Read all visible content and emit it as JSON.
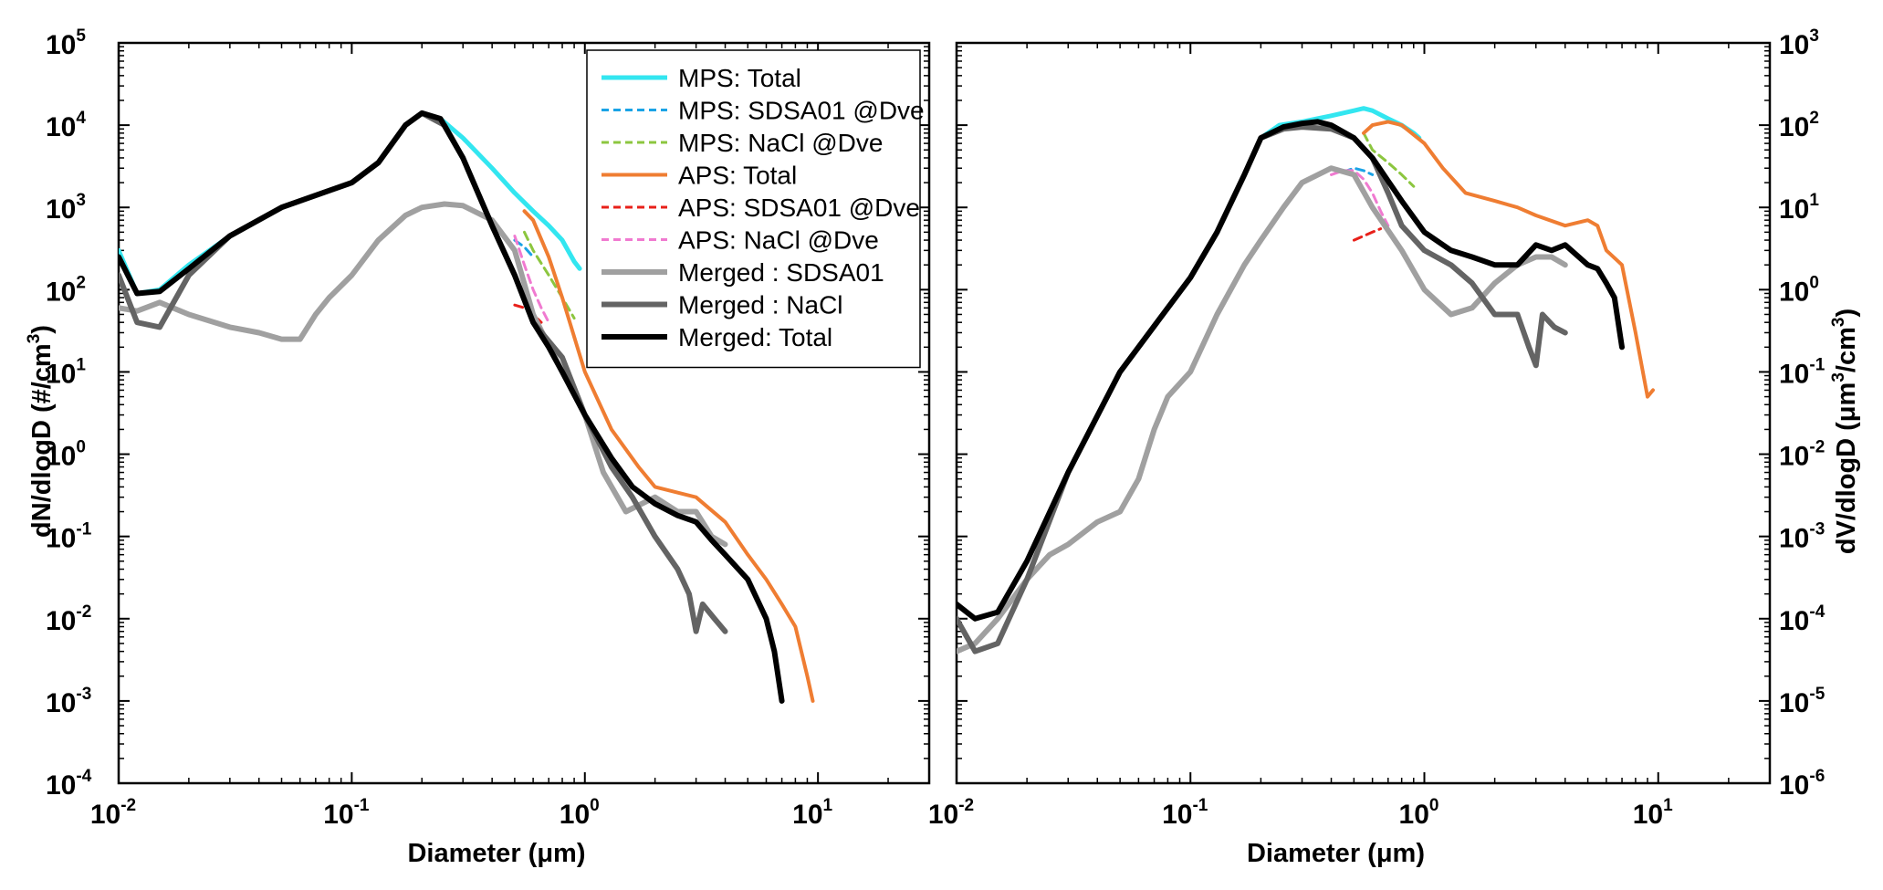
{
  "chart_data": [
    {
      "type": "line",
      "xscale": "log",
      "yscale": "log",
      "xlim": [
        0.01,
        30
      ],
      "ylim": [
        0.0001,
        100000
      ],
      "xlabel_main": "Diameter (",
      "xlabel_unit": "μm",
      "xlabel_close": ")",
      "ylabel_main": "dN/dlogD (#/cm",
      "ylabel_sup": "3",
      "ylabel_close": ")",
      "xticks": [
        {
          "base": "10",
          "exp": "-2",
          "value": 0.01
        },
        {
          "base": "10",
          "exp": "-1",
          "value": 0.1
        },
        {
          "base": "10",
          "exp": "0",
          "value": 1
        },
        {
          "base": "10",
          "exp": "1",
          "value": 10
        }
      ],
      "yticks": [
        {
          "base": "10",
          "exp": "-4",
          "value": 0.0001
        },
        {
          "base": "10",
          "exp": "-3",
          "value": 0.001
        },
        {
          "base": "10",
          "exp": "-2",
          "value": 0.01
        },
        {
          "base": "10",
          "exp": "-1",
          "value": 0.1
        },
        {
          "base": "10",
          "exp": "0",
          "value": 1
        },
        {
          "base": "10",
          "exp": "1",
          "value": 10
        },
        {
          "base": "10",
          "exp": "2",
          "value": 100
        },
        {
          "base": "10",
          "exp": "3",
          "value": 1000
        },
        {
          "base": "10",
          "exp": "4",
          "value": 10000
        },
        {
          "base": "10",
          "exp": "5",
          "value": 100000
        }
      ],
      "legend": {
        "position": "top-right",
        "entries": [
          {
            "label": "MPS: Total",
            "color": "#33e6f0",
            "style": "solid",
            "width": 5
          },
          {
            "label": "MPS: SDSA01 @Dve",
            "color": "#1aa3e6",
            "style": "dashed",
            "width": 3
          },
          {
            "label": "MPS: NaCl @Dve",
            "color": "#8cc63f",
            "style": "dashed",
            "width": 3
          },
          {
            "label": "APS: Total",
            "color": "#ef7d32",
            "style": "solid",
            "width": 4
          },
          {
            "label": "APS: SDSA01 @Dve",
            "color": "#e8201a",
            "style": "dashed",
            "width": 3
          },
          {
            "label": "APS: NaCl @Dve",
            "color": "#f07ad0",
            "style": "dashed",
            "width": 3
          },
          {
            "label": "Merged : SDSA01",
            "color": "#a0a0a0",
            "style": "solid",
            "width": 6
          },
          {
            "label": "Merged : NaCl",
            "color": "#646464",
            "style": "solid",
            "width": 6
          },
          {
            "label": "Merged: Total",
            "color": "#000000",
            "style": "solid",
            "width": 6
          }
        ]
      },
      "series": [
        {
          "color": "#33e6f0",
          "style": "solid",
          "width": 5,
          "x": [
            0.01,
            0.012,
            0.015,
            0.02,
            0.03,
            0.05,
            0.08,
            0.1,
            0.13,
            0.17,
            0.2,
            0.24,
            0.3,
            0.4,
            0.5,
            0.6,
            0.7,
            0.8,
            0.9,
            0.95
          ],
          "y": [
            300,
            90,
            100,
            200,
            450,
            1000,
            1600,
            2000,
            3500,
            10000,
            14000,
            12000,
            7000,
            3000,
            1500,
            900,
            600,
            400,
            220,
            180
          ]
        },
        {
          "color": "#1aa3e6",
          "style": "dashed",
          "width": 3,
          "x": [
            0.5,
            0.55,
            0.6
          ],
          "y": [
            400,
            330,
            250
          ]
        },
        {
          "color": "#8cc63f",
          "style": "dashed",
          "width": 3,
          "x": [
            0.55,
            0.6,
            0.7,
            0.8,
            0.9
          ],
          "y": [
            500,
            300,
            150,
            80,
            45
          ]
        },
        {
          "color": "#ef7d32",
          "style": "solid",
          "width": 4,
          "x": [
            0.55,
            0.6,
            0.7,
            0.8,
            1.0,
            1.3,
            1.7,
            2.0,
            3.0,
            4.0,
            5.0,
            6.0,
            7.0,
            8.0,
            9.0,
            9.5
          ],
          "y": [
            900,
            700,
            250,
            80,
            10,
            2,
            0.7,
            0.4,
            0.3,
            0.15,
            0.06,
            0.03,
            0.015,
            0.008,
            0.002,
            0.001
          ]
        },
        {
          "color": "#e8201a",
          "style": "dashed",
          "width": 3,
          "x": [
            0.5,
            0.55,
            0.6,
            0.65
          ],
          "y": [
            65,
            60,
            50,
            40
          ]
        },
        {
          "color": "#f07ad0",
          "style": "dashed",
          "width": 3,
          "x": [
            0.5,
            0.55,
            0.6,
            0.65,
            0.7
          ],
          "y": [
            450,
            200,
            100,
            60,
            40
          ]
        },
        {
          "color": "#a0a0a0",
          "style": "solid",
          "width": 6,
          "x": [
            0.01,
            0.012,
            0.015,
            0.02,
            0.03,
            0.04,
            0.05,
            0.06,
            0.07,
            0.08,
            0.1,
            0.13,
            0.17,
            0.2,
            0.25,
            0.3,
            0.4,
            0.5,
            0.6,
            0.8,
            1.0,
            1.2,
            1.5,
            2.0,
            2.5,
            3.0,
            3.5,
            4.0
          ],
          "y": [
            60,
            55,
            70,
            50,
            35,
            30,
            25,
            25,
            50,
            80,
            150,
            400,
            800,
            1000,
            1100,
            1050,
            700,
            300,
            50,
            10,
            3,
            0.6,
            0.2,
            0.3,
            0.2,
            0.2,
            0.1,
            0.08
          ]
        },
        {
          "color": "#646464",
          "style": "solid",
          "width": 6,
          "x": [
            0.01,
            0.012,
            0.015,
            0.02,
            0.03,
            0.05,
            0.08,
            0.1,
            0.13,
            0.17,
            0.2,
            0.25,
            0.3,
            0.4,
            0.5,
            0.6,
            0.8,
            1.0,
            1.3,
            1.6,
            2.0,
            2.5,
            2.8,
            3.0,
            3.2,
            3.6,
            4.0
          ],
          "y": [
            150,
            40,
            35,
            150,
            450,
            1000,
            1600,
            2000,
            3500,
            10000,
            14000,
            10000,
            4000,
            600,
            150,
            40,
            15,
            3,
            0.7,
            0.3,
            0.1,
            0.04,
            0.02,
            0.007,
            0.015,
            0.01,
            0.007
          ]
        },
        {
          "color": "#000000",
          "style": "solid",
          "width": 6,
          "x": [
            0.01,
            0.012,
            0.015,
            0.02,
            0.03,
            0.05,
            0.08,
            0.1,
            0.13,
            0.17,
            0.2,
            0.24,
            0.3,
            0.4,
            0.5,
            0.6,
            0.7,
            0.8,
            1.0,
            1.3,
            1.6,
            2.0,
            2.5,
            3.0,
            3.5,
            4.0,
            5.0,
            6.0,
            6.5,
            7.0
          ],
          "y": [
            250,
            90,
            95,
            180,
            450,
            1000,
            1600,
            2000,
            3500,
            10000,
            14000,
            12000,
            4000,
            600,
            150,
            40,
            20,
            10,
            3,
            0.9,
            0.4,
            0.25,
            0.18,
            0.15,
            0.09,
            0.06,
            0.03,
            0.01,
            0.004,
            0.001
          ]
        }
      ]
    },
    {
      "type": "line",
      "xscale": "log",
      "yscale": "log",
      "xlim": [
        0.01,
        30
      ],
      "ylim": [
        1e-06,
        1000
      ],
      "xlabel_main": "Diameter (",
      "xlabel_unit": "μm",
      "xlabel_close": ")",
      "ylabel_main": "dV/dlogD (",
      "ylabel_unit": "μm",
      "ylabel_sup1": "3",
      "ylabel_mid": "/cm",
      "ylabel_sup2": "3",
      "ylabel_close": ")",
      "xticks": [
        {
          "base": "10",
          "exp": "-2",
          "value": 0.01
        },
        {
          "base": "10",
          "exp": "-1",
          "value": 0.1
        },
        {
          "base": "10",
          "exp": "0",
          "value": 1
        },
        {
          "base": "10",
          "exp": "1",
          "value": 10
        }
      ],
      "yticks": [
        {
          "base": "10",
          "exp": "-6",
          "value": 1e-06
        },
        {
          "base": "10",
          "exp": "-5",
          "value": 1e-05
        },
        {
          "base": "10",
          "exp": "-4",
          "value": 0.0001
        },
        {
          "base": "10",
          "exp": "-3",
          "value": 0.001
        },
        {
          "base": "10",
          "exp": "-2",
          "value": 0.01
        },
        {
          "base": "10",
          "exp": "-1",
          "value": 0.1
        },
        {
          "base": "10",
          "exp": "0",
          "value": 1
        },
        {
          "base": "10",
          "exp": "1",
          "value": 10
        },
        {
          "base": "10",
          "exp": "2",
          "value": 100
        },
        {
          "base": "10",
          "exp": "3",
          "value": 1000
        }
      ],
      "series": [
        {
          "color": "#33e6f0",
          "style": "solid",
          "width": 5,
          "x": [
            0.01,
            0.012,
            0.015,
            0.02,
            0.03,
            0.05,
            0.08,
            0.1,
            0.13,
            0.17,
            0.2,
            0.24,
            0.3,
            0.4,
            0.5,
            0.55,
            0.6,
            0.7,
            0.8,
            0.9,
            0.95
          ],
          "y": [
            0.00015,
            0.0001,
            0.00012,
            0.0005,
            0.006,
            0.1,
            0.6,
            1.4,
            5,
            25,
            70,
            100,
            110,
            130,
            150,
            160,
            150,
            120,
            100,
            80,
            70
          ]
        },
        {
          "color": "#1aa3e6",
          "style": "dashed",
          "width": 3,
          "x": [
            0.45,
            0.5,
            0.55,
            0.6
          ],
          "y": [
            27,
            30,
            28,
            25
          ]
        },
        {
          "color": "#8cc63f",
          "style": "dashed",
          "width": 3,
          "x": [
            0.55,
            0.6,
            0.7,
            0.8,
            0.9
          ],
          "y": [
            80,
            50,
            35,
            25,
            18
          ]
        },
        {
          "color": "#ef7d32",
          "style": "solid",
          "width": 4,
          "x": [
            0.55,
            0.6,
            0.7,
            0.8,
            1.0,
            1.2,
            1.5,
            2.0,
            2.5,
            3.0,
            4.0,
            5.0,
            5.5,
            6.0,
            7.0,
            8.0,
            9.0,
            9.5
          ],
          "y": [
            80,
            100,
            110,
            100,
            60,
            30,
            15,
            12,
            10,
            8,
            6,
            7,
            6,
            3,
            2,
            0.3,
            0.05,
            0.06
          ]
        },
        {
          "color": "#e8201a",
          "style": "dashed",
          "width": 3,
          "x": [
            0.5,
            0.55,
            0.6,
            0.65
          ],
          "y": [
            4,
            4.5,
            5,
            5.5
          ]
        },
        {
          "color": "#f07ad0",
          "style": "dashed",
          "width": 3,
          "x": [
            0.4,
            0.45,
            0.5,
            0.55,
            0.6,
            0.65,
            0.7
          ],
          "y": [
            25,
            28,
            28,
            22,
            15,
            9,
            6
          ]
        },
        {
          "color": "#a0a0a0",
          "style": "solid",
          "width": 6,
          "x": [
            0.01,
            0.012,
            0.015,
            0.02,
            0.025,
            0.03,
            0.04,
            0.05,
            0.06,
            0.07,
            0.08,
            0.1,
            0.13,
            0.17,
            0.2,
            0.25,
            0.3,
            0.4,
            0.5,
            0.6,
            0.8,
            1.0,
            1.3,
            1.6,
            2.0,
            2.5,
            3.0,
            3.5,
            4.0
          ],
          "y": [
            4e-05,
            5e-05,
            0.0001,
            0.0003,
            0.0006,
            0.0008,
            0.0015,
            0.002,
            0.005,
            0.02,
            0.05,
            0.1,
            0.5,
            2,
            4,
            10,
            20,
            30,
            25,
            10,
            3,
            1,
            0.5,
            0.6,
            1.2,
            2.0,
            2.5,
            2.5,
            2.0
          ]
        },
        {
          "color": "#646464",
          "style": "solid",
          "width": 6,
          "x": [
            0.01,
            0.012,
            0.015,
            0.02,
            0.03,
            0.05,
            0.08,
            0.1,
            0.13,
            0.17,
            0.2,
            0.25,
            0.3,
            0.4,
            0.5,
            0.6,
            0.7,
            0.8,
            1.0,
            1.3,
            1.6,
            2.0,
            2.5,
            2.8,
            3.0,
            3.2,
            3.6,
            4.0
          ],
          "y": [
            0.0001,
            4e-05,
            5e-05,
            0.0003,
            0.006,
            0.1,
            0.6,
            1.4,
            5,
            25,
            70,
            90,
            95,
            90,
            70,
            40,
            15,
            6,
            3,
            2,
            1.2,
            0.5,
            0.5,
            0.2,
            0.12,
            0.5,
            0.35,
            0.3
          ]
        },
        {
          "color": "#000000",
          "style": "solid",
          "width": 6,
          "x": [
            0.01,
            0.012,
            0.015,
            0.02,
            0.03,
            0.05,
            0.08,
            0.1,
            0.13,
            0.17,
            0.2,
            0.25,
            0.3,
            0.35,
            0.4,
            0.5,
            0.6,
            0.8,
            1.0,
            1.3,
            1.6,
            2.0,
            2.5,
            3.0,
            3.5,
            4.0,
            5.0,
            5.5,
            6.0,
            6.5,
            7.0
          ],
          "y": [
            0.00015,
            0.0001,
            0.00012,
            0.0005,
            0.006,
            0.1,
            0.6,
            1.4,
            5,
            25,
            70,
            95,
            105,
            110,
            100,
            70,
            40,
            12,
            5,
            3,
            2.5,
            2,
            2,
            3.5,
            3,
            3.5,
            2,
            1.8,
            1.2,
            0.8,
            0.2
          ]
        }
      ]
    }
  ]
}
